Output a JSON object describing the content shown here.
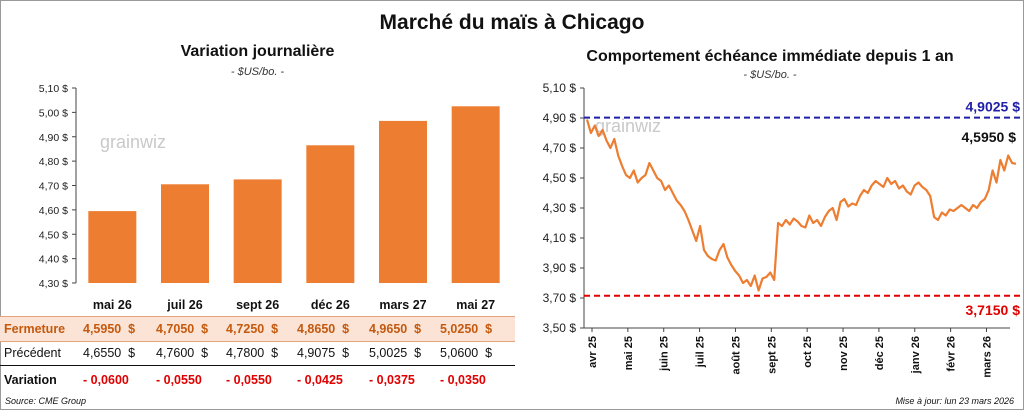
{
  "title": "Marché du maïs à Chicago",
  "left_panel": {
    "title": "Variation journalière",
    "subtitle": "- $US/bo. -"
  },
  "right_panel": {
    "title": "Comportement  échéance immédiate depuis 1 an",
    "subtitle": "- $US/bo. -"
  },
  "watermark": "grainwiz",
  "table": {
    "rows": [
      {
        "label": "Fermeture",
        "values": [
          "4,5950  $",
          "4,7050  $",
          "4,7250  $",
          "4,8650  $",
          "4,9650  $",
          "5,0250  $"
        ]
      },
      {
        "label": "Précédent",
        "values": [
          "4,6550  $",
          "4,7600  $",
          "4,7800  $",
          "4,9075  $",
          "5,0025  $",
          "5,0600  $"
        ]
      },
      {
        "label": "Variation",
        "values": [
          "- 0,0600",
          "- 0,0550",
          "- 0,0550",
          "- 0,0425",
          "- 0,0375",
          "- 0,0350"
        ]
      }
    ]
  },
  "source": "Source: CME Group",
  "updated": "Mise à jour: lun 23 mars 2026",
  "colors": {
    "bar": "#ed7d31",
    "line": "#ed7d31",
    "high": "#1f1fa8",
    "low": "#e00000"
  },
  "chart_data": [
    {
      "type": "bar",
      "title": "Variation journalière",
      "categories": [
        "mai 26",
        "juil 26",
        "sept 26",
        "déc 26",
        "mars 27",
        "mai 27"
      ],
      "values": [
        4.595,
        4.705,
        4.725,
        4.865,
        4.965,
        5.025
      ],
      "ylim": [
        4.3,
        5.1
      ],
      "yticks": [
        4.3,
        4.4,
        4.5,
        4.6,
        4.7,
        4.8,
        4.9,
        5.0,
        5.1
      ],
      "ytick_labels": [
        "4,30 $",
        "4,40 $",
        "4,50 $",
        "4,60 $",
        "4,70 $",
        "4,80 $",
        "4,90 $",
        "5,00 $",
        "5,10 $"
      ],
      "grid": false
    },
    {
      "type": "line",
      "title": "Comportement  échéance immédiate depuis 1 an",
      "xlabels": [
        "avr 25",
        "mai 25",
        "juin 25",
        "juil 25",
        "août 25",
        "sept 25",
        "oct 25",
        "nov 25",
        "déc 25",
        "janv 26",
        "févr 26",
        "mars 26"
      ],
      "ylim": [
        3.5,
        5.1
      ],
      "yticks": [
        3.5,
        3.7,
        3.9,
        4.1,
        4.3,
        4.5,
        4.7,
        4.9,
        5.1
      ],
      "ytick_labels": [
        "3,50 $",
        "3,70 $",
        "3,90 $",
        "4,10 $",
        "4,30 $",
        "4,50 $",
        "4,70 $",
        "4,90 $",
        "5,10 $"
      ],
      "values": [
        4.89,
        4.8,
        4.85,
        4.78,
        4.82,
        4.75,
        4.7,
        4.76,
        4.65,
        4.58,
        4.52,
        4.5,
        4.55,
        4.47,
        4.5,
        4.52,
        4.6,
        4.55,
        4.5,
        4.48,
        4.42,
        4.45,
        4.4,
        4.35,
        4.32,
        4.28,
        4.22,
        4.15,
        4.08,
        4.18,
        4.02,
        3.98,
        3.96,
        3.95,
        4.02,
        4.06,
        3.97,
        3.92,
        3.88,
        3.85,
        3.8,
        3.82,
        3.78,
        3.85,
        3.75,
        3.83,
        3.84,
        3.87,
        3.82,
        4.2,
        4.18,
        4.22,
        4.19,
        4.23,
        4.21,
        4.18,
        4.17,
        4.25,
        4.2,
        4.22,
        4.18,
        4.24,
        4.28,
        4.3,
        4.22,
        4.34,
        4.36,
        4.31,
        4.33,
        4.32,
        4.38,
        4.42,
        4.4,
        4.45,
        4.48,
        4.46,
        4.44,
        4.5,
        4.46,
        4.48,
        4.43,
        4.45,
        4.41,
        4.39,
        4.45,
        4.47,
        4.44,
        4.42,
        4.38,
        4.24,
        4.22,
        4.27,
        4.25,
        4.29,
        4.28,
        4.3,
        4.32,
        4.3,
        4.28,
        4.32,
        4.3,
        4.34,
        4.36,
        4.42,
        4.55,
        4.47,
        4.62,
        4.55,
        4.65,
        4.6,
        4.595
      ],
      "reference_lines": [
        {
          "value": 4.9025,
          "label": "4,9025 $",
          "color": "#1f1fa8"
        },
        {
          "value": 3.715,
          "label": "3,7150 $",
          "color": "#e00000"
        }
      ],
      "last_value_label": "4,5950 $",
      "grid": false
    }
  ]
}
